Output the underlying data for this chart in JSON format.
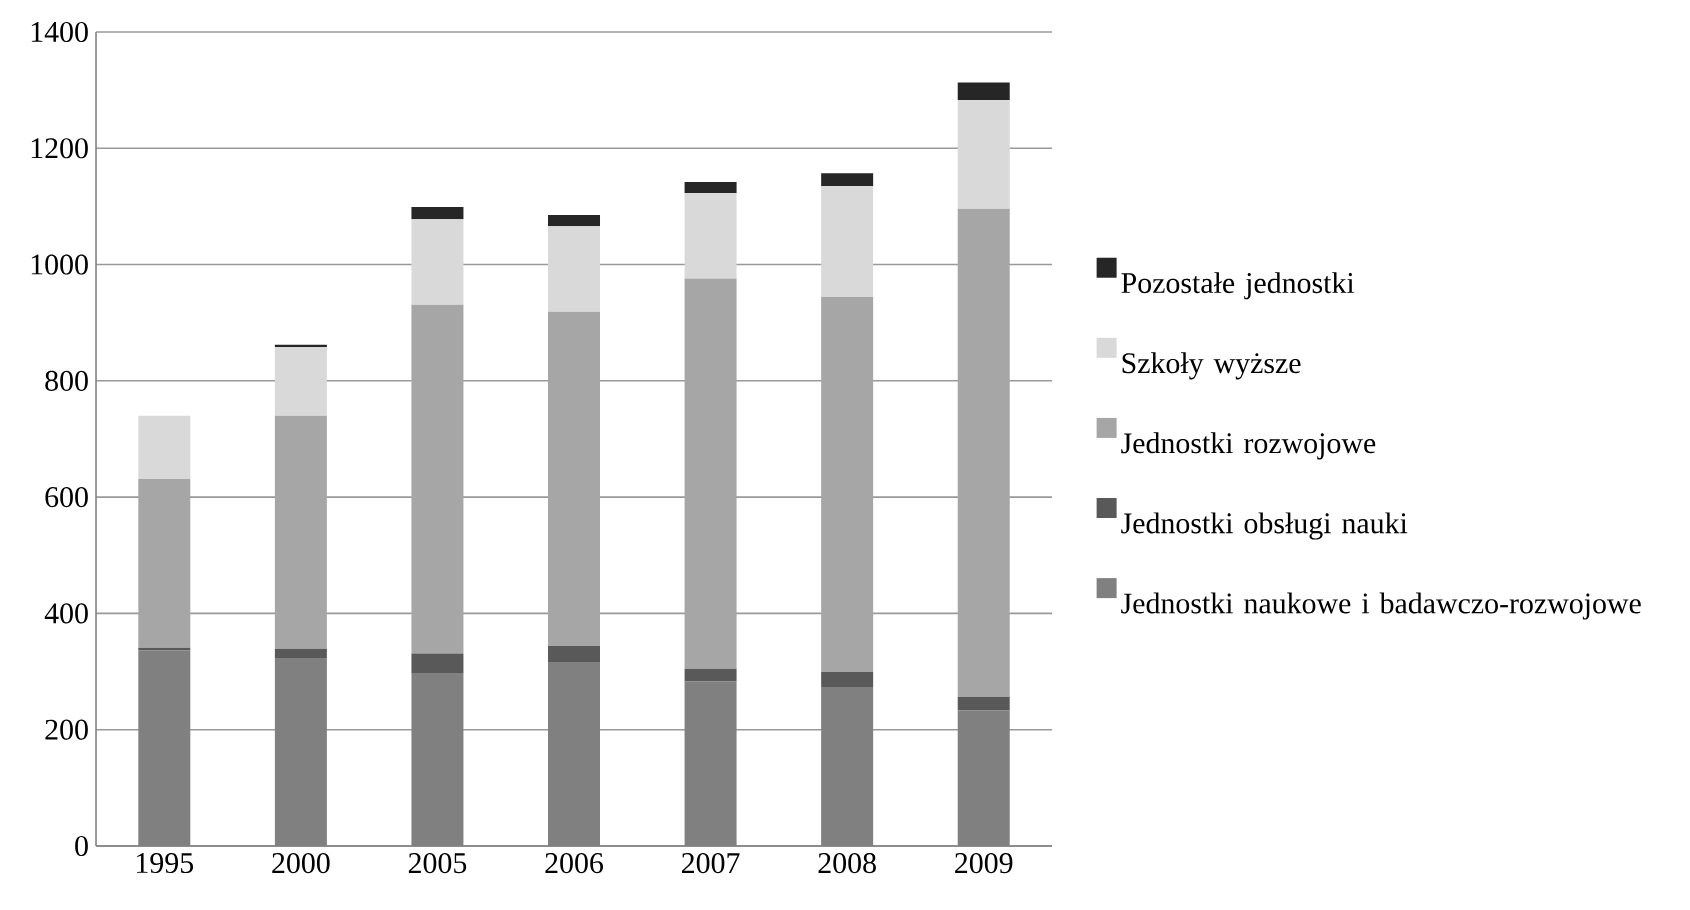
{
  "chart_data": {
    "type": "bar",
    "stacked": true,
    "categories": [
      "1995",
      "2000",
      "2005",
      "2006",
      "2007",
      "2008",
      "2009"
    ],
    "series": [
      {
        "name": "Jednostki naukowe i badawczo-rozwojowe",
        "color": "#808080",
        "values": [
          336,
          322,
          296,
          315,
          283,
          272,
          233
        ]
      },
      {
        "name": "Jednostki obsługi nauki",
        "color": "#595959",
        "values": [
          5,
          17,
          35,
          29,
          22,
          27,
          23
        ]
      },
      {
        "name": "Jednostki rozwojowe",
        "color": "#a6a6a6",
        "values": [
          290,
          401,
          600,
          575,
          671,
          645,
          840
        ]
      },
      {
        "name": "Szkoły wyższe",
        "color": "#d9d9d9",
        "values": [
          109,
          118,
          147,
          147,
          147,
          191,
          187
        ]
      },
      {
        "name": "Pozostałe jednostki",
        "color": "#262626",
        "values": [
          0,
          4,
          21,
          19,
          19,
          22,
          30
        ]
      }
    ],
    "ylim": [
      0,
      1400
    ],
    "yticks": [
      0,
      200,
      400,
      600,
      800,
      1000,
      1200,
      1400
    ],
    "grid": "y",
    "legend": "right"
  }
}
